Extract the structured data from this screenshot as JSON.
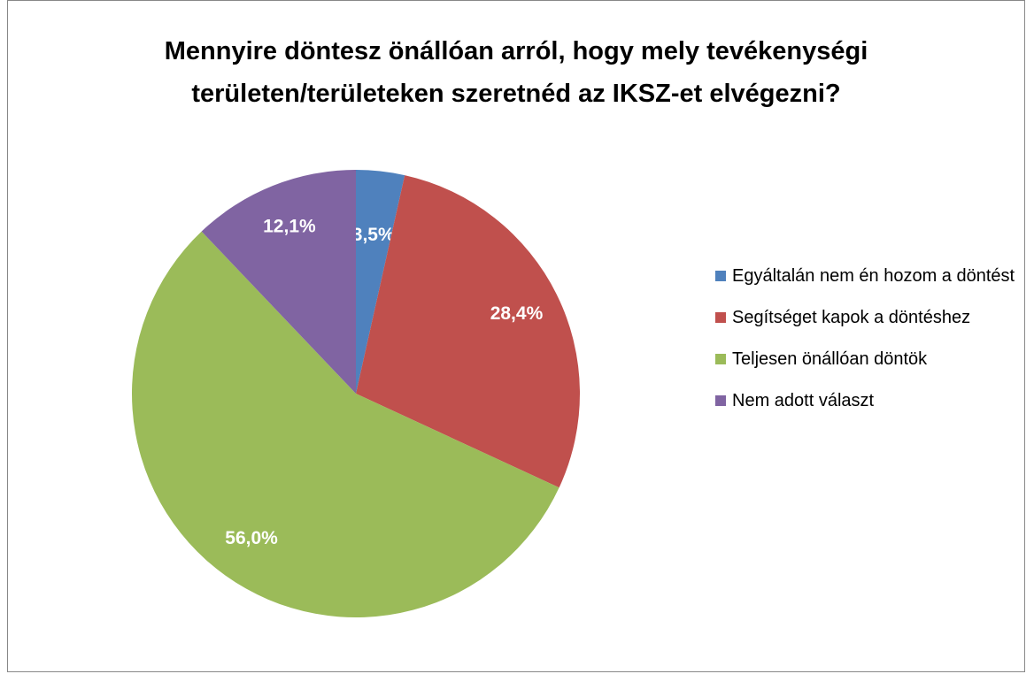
{
  "chart_data": {
    "type": "pie",
    "title": "Mennyire döntesz önállóan arról, hogy mely tevékenységi területen/területeken szeretnéd az IKSZ-et elvégezni?",
    "categories": [
      "Egyáltalán nem én hozom a döntést",
      "Segítséget kapok a döntéshez",
      "Teljesen önállóan döntök",
      "Nem adott választ"
    ],
    "values": [
      3.5,
      28.4,
      56.0,
      12.1
    ],
    "value_labels": [
      "3,5%",
      "28,4%",
      "56,0%",
      "12,1%"
    ],
    "colors": [
      "#4f81bd",
      "#c0504d",
      "#9bbb59",
      "#8064a2"
    ],
    "legend": "right"
  }
}
